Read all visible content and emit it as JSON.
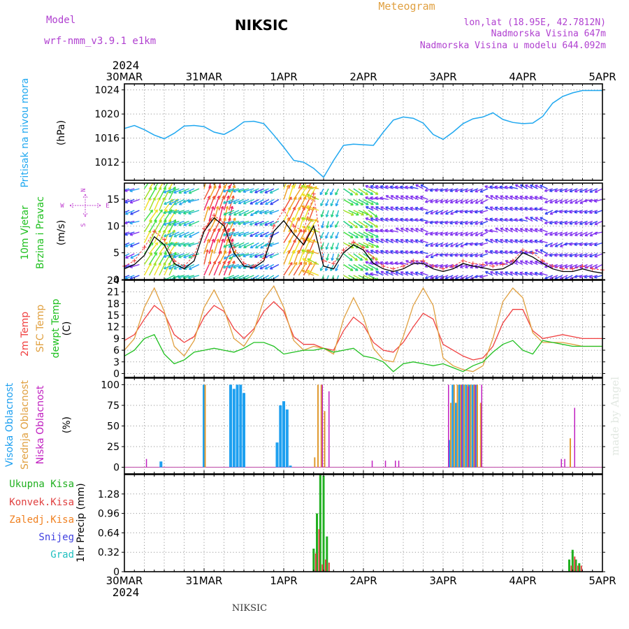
{
  "header": {
    "model_label": "Model",
    "model_value": "wrf-nmm_v3.9.1  e1km",
    "station": "NIKSIC",
    "product": "Meteogram",
    "location": "lon,lat (18.95E, 42.7812N)",
    "elevation": "Nadmorska Visina 647m",
    "model_elevation": "Nadmorska Visina u modelu 644.092m",
    "year_top": "2024",
    "year_bottom": "2024",
    "footer_station": "NIKSIC",
    "watermark": "made by Angel"
  },
  "colors": {
    "pressure": "#20a8f0",
    "temp2m": "#f04040",
    "sfc": "#e0a040",
    "dewpt": "#20c020",
    "wind_speed": "#000000",
    "wind_gust": "#f04040",
    "cloud_high": "#1ea0f0",
    "cloud_mid": "#e09a30",
    "cloud_low": "#c020c0",
    "precip_total": "#20b020",
    "precip_conv": "#e04040",
    "precip_frozen": "#f08020",
    "snow": "#4040e0",
    "hail": "#20c0c0",
    "title_purple": "#b040d0",
    "title_orange": "#e0a040",
    "compass": "#c040d0"
  },
  "chart_data": [
    {
      "type": "line",
      "panel": "pressure",
      "ylabel_1": "Pritisak na nivou mora",
      "ylabel_2": "(hPa)",
      "x_ticks": [
        "30MAR",
        "31MAR",
        "1APR",
        "2APR",
        "3APR",
        "4APR",
        "5APR"
      ],
      "xlim_hours": [
        0,
        144
      ],
      "ylim": [
        1009,
        1025
      ],
      "yticks": [
        1012,
        1016,
        1020,
        1024
      ],
      "grid": true,
      "series": [
        {
          "key": "pressure",
          "x": [
            0,
            3,
            6,
            9,
            12,
            15,
            18,
            21,
            24,
            27,
            30,
            33,
            36,
            39,
            42,
            45,
            48,
            51,
            54,
            57,
            60,
            63,
            66,
            69,
            72,
            75,
            78,
            81,
            84,
            87,
            90,
            93,
            96,
            99,
            102,
            105,
            108,
            111,
            114,
            117,
            120,
            123,
            126,
            129,
            132,
            135,
            138,
            141,
            144
          ],
          "values": [
            1017.6,
            1018.1,
            1017.4,
            1016.5,
            1015.9,
            1016.8,
            1018.0,
            1018.1,
            1017.9,
            1017.0,
            1016.6,
            1017.5,
            1018.7,
            1018.8,
            1018.4,
            1016.5,
            1014.5,
            1012.3,
            1012.0,
            1011.0,
            1009.5,
            1012.3,
            1014.8,
            1015.0,
            1014.9,
            1014.8,
            1017.0,
            1019.0,
            1019.5,
            1019.3,
            1018.5,
            1016.6,
            1015.8,
            1017.0,
            1018.4,
            1019.2,
            1019.5,
            1020.2,
            1019.1,
            1018.6,
            1018.4,
            1018.5,
            1019.6,
            1021.8,
            1022.9,
            1023.5,
            1023.9,
            1023.9,
            1023.9
          ]
        }
      ]
    },
    {
      "type": "line",
      "panel": "wind",
      "ylabel_1": "10m Vjetar",
      "ylabel_2": "Brzina i Pravac",
      "ylabel_3": "(m/s)",
      "compass": {
        "north": "N",
        "south": "S",
        "east": "E",
        "west": "W"
      },
      "ylim": [
        0,
        18
      ],
      "yticks": [
        0,
        5,
        10,
        15
      ],
      "grid": true,
      "series": [
        {
          "key": "wind_speed",
          "x": [
            0,
            3,
            6,
            9,
            12,
            15,
            18,
            21,
            24,
            27,
            30,
            33,
            36,
            39,
            42,
            45,
            48,
            51,
            54,
            57,
            60,
            63,
            66,
            69,
            72,
            75,
            78,
            81,
            84,
            87,
            90,
            93,
            96,
            99,
            102,
            105,
            108,
            111,
            114,
            117,
            120,
            123,
            126,
            129,
            132,
            135,
            138,
            141,
            144
          ],
          "values": [
            2.0,
            2.8,
            4.5,
            8.0,
            6.5,
            3.0,
            2.0,
            3.5,
            9.0,
            11.5,
            10.0,
            5.0,
            2.5,
            2.2,
            3.5,
            9.0,
            11.0,
            8.5,
            6.5,
            10.0,
            2.5,
            2.0,
            5.0,
            6.5,
            5.5,
            3.0,
            2.0,
            1.5,
            2.0,
            3.0,
            3.0,
            2.0,
            1.5,
            2.0,
            3.0,
            2.5,
            2.2,
            1.8,
            2.0,
            3.0,
            5.0,
            4.2,
            3.0,
            2.0,
            1.5,
            1.5,
            2.0,
            1.5,
            1.2
          ]
        },
        {
          "key": "wind_gust",
          "x": [
            0,
            3,
            6,
            9,
            12,
            15,
            18,
            21,
            24,
            27,
            30,
            33,
            36,
            39,
            42,
            45,
            48,
            51,
            54,
            57,
            60,
            63,
            66,
            69,
            72,
            75,
            78,
            81,
            84,
            87,
            90,
            93,
            96,
            99,
            102,
            105,
            108,
            111,
            114,
            117,
            120,
            123,
            126,
            129,
            132,
            135,
            138,
            141,
            144
          ],
          "values": [
            2.5,
            3.5,
            6.0,
            9.0,
            7.5,
            3.5,
            2.5,
            4.5,
            9.5,
            12.0,
            10.5,
            6.0,
            3.0,
            2.5,
            4.0,
            10.0,
            13.0,
            10.0,
            9.0,
            16.0,
            3.5,
            3.0,
            5.5,
            7.0,
            6.0,
            4.0,
            2.5,
            2.0,
            2.5,
            3.5,
            3.5,
            2.5,
            2.0,
            2.5,
            3.5,
            3.0,
            2.8,
            2.5,
            2.8,
            3.5,
            5.5,
            5.0,
            3.5,
            2.5,
            2.0,
            2.0,
            2.5,
            2.0,
            1.8
          ]
        }
      ]
    },
    {
      "type": "line",
      "panel": "temperature",
      "ylabel_1": "2m Temp",
      "ylabel_2": "SFC Temp",
      "ylabel_3": "dewpt Temp",
      "ylabel_4": "(C)",
      "ylim": [
        -1,
        24
      ],
      "yticks": [
        0,
        3,
        6,
        9,
        12,
        15,
        18,
        21,
        24
      ],
      "grid": true,
      "series": [
        {
          "key": "temp2m",
          "x": [
            0,
            3,
            6,
            9,
            12,
            15,
            18,
            21,
            24,
            27,
            30,
            33,
            36,
            39,
            42,
            45,
            48,
            51,
            54,
            57,
            60,
            63,
            66,
            69,
            72,
            75,
            78,
            81,
            84,
            87,
            90,
            93,
            96,
            99,
            102,
            105,
            108,
            111,
            114,
            117,
            120,
            123,
            126,
            129,
            132,
            135,
            138,
            141,
            144
          ],
          "values": [
            8.5,
            10.0,
            14.0,
            17.5,
            15.5,
            10.0,
            8.0,
            9.5,
            14.5,
            17.5,
            16.0,
            11.5,
            9.0,
            11.5,
            16.0,
            18.5,
            16.0,
            9.5,
            7.5,
            7.5,
            6.5,
            6.0,
            11.0,
            14.5,
            12.5,
            8.0,
            6.0,
            5.5,
            8.0,
            12.0,
            15.5,
            14.0,
            7.5,
            6.0,
            4.5,
            3.5,
            4.0,
            7.0,
            13.0,
            16.5,
            16.5,
            11.0,
            9.0,
            9.5,
            10.0,
            9.5,
            9.0,
            9.0,
            9.0
          ]
        },
        {
          "key": "sfc",
          "x": [
            0,
            3,
            6,
            9,
            12,
            15,
            18,
            21,
            24,
            27,
            30,
            33,
            36,
            39,
            42,
            45,
            48,
            51,
            54,
            57,
            60,
            63,
            66,
            69,
            72,
            75,
            78,
            81,
            84,
            87,
            90,
            93,
            96,
            99,
            102,
            105,
            108,
            111,
            114,
            117,
            120,
            123,
            126,
            129,
            132,
            135,
            138,
            141,
            144
          ],
          "values": [
            6.0,
            9.0,
            17.0,
            22.0,
            16.0,
            7.0,
            4.5,
            8.5,
            17.0,
            21.5,
            16.5,
            9.0,
            7.0,
            11.0,
            19.0,
            22.5,
            17.0,
            8.5,
            6.0,
            7.0,
            6.5,
            5.0,
            14.0,
            19.5,
            14.5,
            6.5,
            3.5,
            3.0,
            9.5,
            17.5,
            22.0,
            17.5,
            4.0,
            2.0,
            1.0,
            0.5,
            2.0,
            9.0,
            18.5,
            22.0,
            19.5,
            10.5,
            8.0,
            8.0,
            8.0,
            7.5,
            7.0,
            7.0,
            7.0
          ]
        },
        {
          "key": "dewpt",
          "x": [
            0,
            3,
            6,
            9,
            12,
            15,
            18,
            21,
            24,
            27,
            30,
            33,
            36,
            39,
            42,
            45,
            48,
            51,
            54,
            57,
            60,
            63,
            66,
            69,
            72,
            75,
            78,
            81,
            84,
            87,
            90,
            93,
            96,
            99,
            102,
            105,
            108,
            111,
            114,
            117,
            120,
            123,
            126,
            129,
            132,
            135,
            138,
            141,
            144
          ],
          "values": [
            4.5,
            6.0,
            9.0,
            10.0,
            5.0,
            2.5,
            3.5,
            5.5,
            6.0,
            6.5,
            6.0,
            5.5,
            6.5,
            8.0,
            8.0,
            7.0,
            5.0,
            5.5,
            6.0,
            6.0,
            6.5,
            5.5,
            6.0,
            6.5,
            4.5,
            4.0,
            3.0,
            0.5,
            2.5,
            3.0,
            2.5,
            2.0,
            2.5,
            1.5,
            0.5,
            2.0,
            3.0,
            5.5,
            7.5,
            8.5,
            6.0,
            5.0,
            8.5,
            8.0,
            7.5,
            7.0,
            7.0,
            7.0,
            7.0
          ]
        }
      ]
    },
    {
      "type": "bar",
      "panel": "clouds",
      "ylabel_1": "Visoka Oblacnost",
      "ylabel_2": "Srednja Oblacnost",
      "ylabel_3": "Niska Oblacnost",
      "ylabel_4": "(%)",
      "ylim": [
        -8,
        108
      ],
      "yticks": [
        0,
        25,
        50,
        75,
        100
      ],
      "grid": true,
      "series": [
        {
          "key": "cloud_high",
          "x": [
            11,
            24,
            32,
            33,
            34,
            35,
            36,
            46,
            47,
            48,
            49,
            50,
            98,
            99,
            100,
            101,
            102,
            103,
            104,
            105,
            106
          ],
          "values": [
            7,
            100,
            100,
            95,
            100,
            100,
            90,
            30,
            75,
            80,
            70,
            2,
            33,
            100,
            78,
            100,
            100,
            100,
            100,
            100,
            100
          ]
        },
        {
          "key": "cloud_mid",
          "x": [
            24,
            57,
            58,
            59,
            60,
            98,
            99,
            100,
            101,
            102,
            103,
            104,
            105,
            106,
            107,
            134
          ],
          "values": [
            100,
            12,
            100,
            100,
            68,
            78,
            100,
            100,
            100,
            100,
            100,
            100,
            100,
            100,
            78,
            35
          ]
        },
        {
          "key": "cloud_low",
          "x": [
            6,
            59,
            61,
            74,
            78,
            81,
            82,
            97,
            101,
            103,
            105,
            107,
            131,
            132,
            135
          ],
          "values": [
            10,
            100,
            92,
            8,
            8,
            8,
            8,
            100,
            100,
            98,
            100,
            100,
            10,
            10,
            72
          ]
        }
      ]
    },
    {
      "type": "bar",
      "panel": "precip",
      "ylabel": "1hr Precip (mm)",
      "legend": {
        "total": "Ukupna Kisa",
        "conv": "Konvek.Kisa",
        "frozen": "Zaledj.Kisa",
        "snow": "Snijeg",
        "hail": "Grad"
      },
      "ylim": [
        0,
        1.6
      ],
      "yticks": [
        "0",
        "0.32",
        "0.64",
        "0.96",
        "1.28"
      ],
      "ytick_values": [
        0,
        0.32,
        0.64,
        0.96,
        1.28
      ],
      "grid": true,
      "series": [
        {
          "key": "precip_total",
          "x": [
            57,
            58,
            59,
            60,
            61,
            134,
            135,
            136,
            137
          ],
          "values": [
            0.38,
            0.96,
            1.6,
            1.58,
            0.58,
            0.2,
            0.36,
            0.2,
            0.14
          ]
        },
        {
          "key": "precip_conv",
          "x": [
            57,
            58,
            59,
            60,
            61,
            134,
            135,
            136,
            137
          ],
          "values": [
            0.3,
            0.7,
            0.12,
            0.2,
            0.15,
            0.1,
            0.25,
            0.1,
            0.1
          ]
        }
      ]
    }
  ]
}
